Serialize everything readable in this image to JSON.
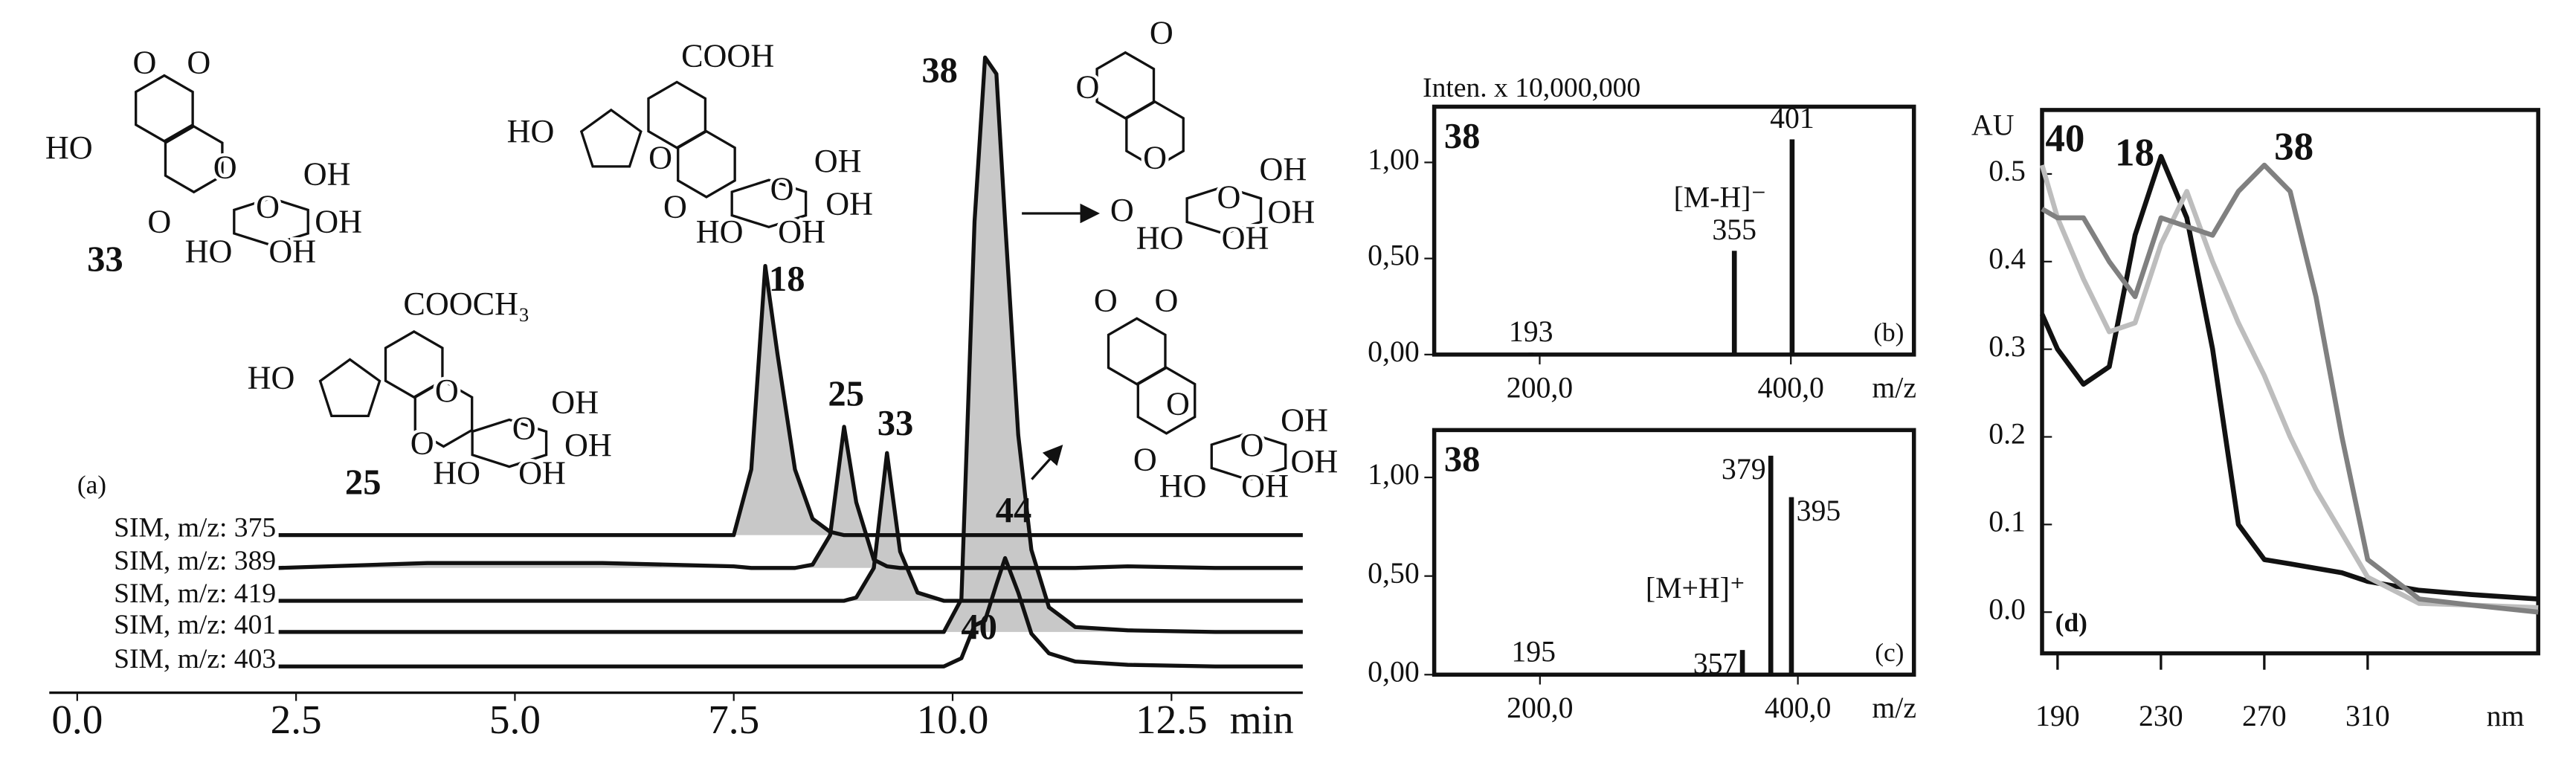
{
  "chart_data": [
    {
      "type": "line",
      "panel_label": "(a)",
      "x_label": "min",
      "xlim": [
        0,
        14
      ],
      "xticks": [
        {
          "value": 0,
          "label": "0.0"
        },
        {
          "value": 2.5,
          "label": "2.5"
        },
        {
          "value": 5,
          "label": "5.0"
        },
        {
          "value": 7.5,
          "label": "7.5"
        },
        {
          "value": 10,
          "label": "10.0"
        },
        {
          "value": 12.5,
          "label": "12.5"
        }
      ],
      "x": [
        2.3,
        4.0,
        6.0,
        7.5,
        7.7,
        7.86,
        8.0,
        8.2,
        8.4,
        8.6,
        8.76,
        8.9,
        9.1,
        9.25,
        9.4,
        9.6,
        9.9,
        10.1,
        10.25,
        10.37,
        10.5,
        10.6,
        10.75,
        10.9,
        11.1,
        11.4,
        12.0,
        13.0,
        14.0
      ],
      "series": [
        {
          "name": "SIM, m/z: 375",
          "color": "#111111",
          "fill": "#c8c8c8",
          "values": [
            0,
            0,
            0,
            0,
            40,
            164,
            110,
            40,
            10,
            2,
            0,
            0,
            0,
            0,
            0,
            0,
            0,
            0,
            0,
            0,
            0,
            0,
            0,
            0,
            0,
            0,
            0,
            0,
            0
          ]
        },
        {
          "name": "SIM, m/z: 389",
          "color": "#111111",
          "fill": "#c8c8c8",
          "values": [
            0,
            3,
            3,
            1,
            0,
            0,
            0,
            0,
            2,
            20,
            86,
            40,
            5,
            1,
            0,
            0,
            0,
            0,
            0,
            0,
            0,
            0,
            0,
            0,
            0,
            0,
            1,
            0,
            0
          ]
        },
        {
          "name": "SIM, m/z: 419",
          "color": "#111111",
          "fill": "#c8c8c8",
          "values": [
            0,
            0,
            0,
            0,
            0,
            0,
            0,
            0,
            0,
            0,
            0,
            2,
            20,
            90,
            30,
            5,
            0,
            0,
            0,
            0,
            0,
            0,
            0,
            0,
            0,
            0,
            0,
            0,
            0
          ]
        },
        {
          "name": "SIM, m/z: 401",
          "color": "#111111",
          "fill": "#c8c8c8",
          "values": [
            0,
            0,
            0,
            0,
            0,
            0,
            0,
            0,
            0,
            0,
            0,
            0,
            0,
            0,
            0,
            0,
            0,
            20,
            250,
            350,
            340,
            250,
            120,
            50,
            15,
            3,
            1,
            0,
            0
          ]
        },
        {
          "name": "SIM, m/z: 403",
          "color": "#111111",
          "values": [
            0,
            0,
            0,
            0,
            0,
            0,
            0,
            0,
            0,
            0,
            0,
            0,
            0,
            0,
            0,
            0,
            0,
            5,
            25,
            28,
            50,
            66,
            45,
            20,
            8,
            3,
            1,
            0,
            0
          ]
        }
      ],
      "annotations": [
        "38",
        "18",
        "25",
        "33",
        "44",
        "40"
      ]
    },
    {
      "type": "bar",
      "title": "Inten. x 10,000,000",
      "compound": "38",
      "panel_label": "(b)",
      "x_label": "m/z",
      "xlim": [
        116,
        498
      ],
      "ylim": [
        0,
        1.29
      ],
      "xticks": [
        {
          "value": 200,
          "label": "200,0"
        },
        {
          "value": 400,
          "label": "400,0"
        }
      ],
      "yticks": [
        {
          "value": 0,
          "label": "0,00"
        },
        {
          "value": 0.5,
          "label": "0,50"
        },
        {
          "value": 1,
          "label": "1,00"
        }
      ],
      "x": [
        193,
        355,
        401
      ],
      "values": [
        0.01,
        0.54,
        1.12
      ],
      "color": "#111111",
      "annotation": "[M-H]⁻"
    },
    {
      "type": "bar",
      "compound": "38",
      "panel_label": "(c)",
      "x_label": "m/z",
      "xlim": [
        118,
        490
      ],
      "ylim": [
        0,
        1.24
      ],
      "xticks": [
        {
          "value": 200,
          "label": "200,0"
        },
        {
          "value": 400,
          "label": "400,0"
        }
      ],
      "yticks": [
        {
          "value": 0,
          "label": "0,00"
        },
        {
          "value": 0.5,
          "label": "0,50"
        },
        {
          "value": 1,
          "label": "1,00"
        }
      ],
      "x": [
        195,
        357,
        379,
        395
      ],
      "values": [
        0.01,
        0.125,
        1.11,
        0.9
      ],
      "color": "#111111",
      "annotation": "[M+H]⁺"
    },
    {
      "type": "line",
      "panel_label": "(d)",
      "y_label": "AU",
      "x_label": "nm",
      "xlim": [
        184,
        376
      ],
      "ylim": [
        -0.047,
        0.573
      ],
      "xticks": [
        190,
        230,
        270,
        310
      ],
      "yticks": [
        {
          "value": 0,
          "label": "0.0"
        },
        0.1,
        0.2,
        0.3,
        0.4,
        0.5
      ],
      "x": [
        184,
        190,
        200,
        210,
        220,
        230,
        240,
        250,
        260,
        270,
        280,
        290,
        300,
        310,
        330,
        350,
        376
      ],
      "series": [
        {
          "name": "18",
          "color": "#111111",
          "values": [
            0.34,
            0.3,
            0.26,
            0.28,
            0.43,
            0.52,
            0.45,
            0.3,
            0.1,
            0.06,
            0.055,
            0.05,
            0.045,
            0.035,
            0.025,
            0.02,
            0.015
          ]
        },
        {
          "name": "40",
          "color": "#bdbdbd",
          "values": [
            0.51,
            0.45,
            0.38,
            0.32,
            0.33,
            0.42,
            0.48,
            0.4,
            0.33,
            0.27,
            0.2,
            0.14,
            0.09,
            0.04,
            0.01,
            0.008,
            0.005
          ]
        },
        {
          "name": "38",
          "color": "#808080",
          "values": [
            0.46,
            0.45,
            0.45,
            0.4,
            0.36,
            0.45,
            0.44,
            0.43,
            0.48,
            0.51,
            0.48,
            0.36,
            0.2,
            0.06,
            0.015,
            0.008,
            0
          ]
        }
      ]
    }
  ],
  "structures": [
    {
      "label": "33",
      "atoms": [
        "O",
        "O",
        "HO",
        "O",
        "O",
        "O",
        "OH",
        "OH",
        "HO",
        "OH"
      ]
    },
    {
      "atoms": [
        "COOH",
        "HO",
        "O",
        "O",
        "O",
        "OH",
        "OH",
        "HO",
        "OH"
      ]
    },
    {
      "label": "25",
      "atoms": [
        "COOCH₃",
        "HO",
        "O",
        "O",
        "O",
        "OH",
        "OH",
        "HO",
        "OH"
      ]
    },
    {
      "atoms": [
        "O",
        "O",
        "O",
        "O",
        "O",
        "OH",
        "OH",
        "HO",
        "OH"
      ]
    },
    {
      "atoms": [
        "O",
        "O",
        "O",
        "O",
        "O",
        "OH",
        "OH",
        "HO",
        "OH"
      ]
    }
  ]
}
